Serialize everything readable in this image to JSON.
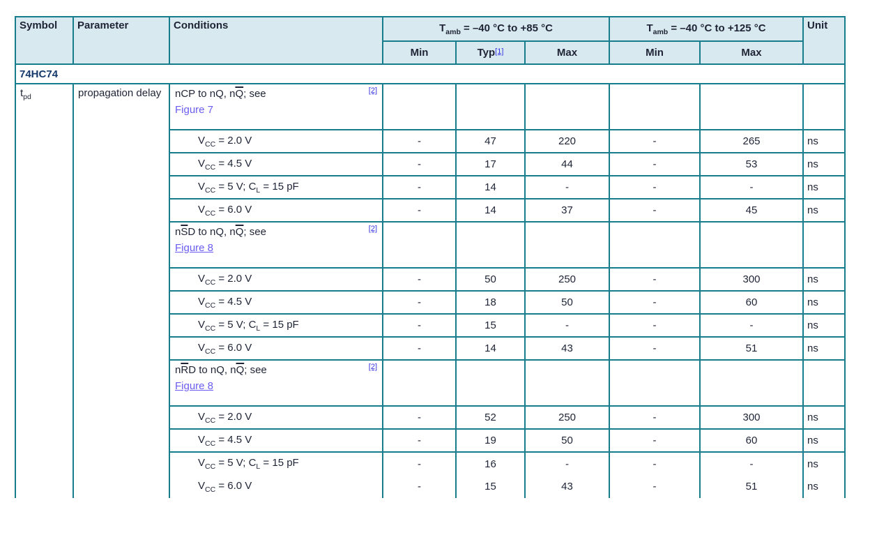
{
  "table": {
    "colors": {
      "border": "#177D8C",
      "header_bg": "#D9E9F0",
      "text": "#1E2435",
      "section_text": "#15396B",
      "figure_link": "#6A5CF0",
      "footnote_link": "#3434E4"
    },
    "header": {
      "symbol": "Symbol",
      "parameter": "Parameter",
      "conditions": "Conditions",
      "range85": "T~amb~ = –40 °C to +85 °C",
      "range125": "T~amb~ = –40 °C to +125 °C",
      "min85": "Min",
      "typ": "Typ",
      "typ_footnote": "[1]",
      "max85": "Max",
      "min125": "Min",
      "max125": "Max",
      "unit": "Unit"
    },
    "section_label": "74HC74",
    "symbol": "t~pd~",
    "parameter": "propagation delay",
    "groups": [
      {
        "condition": "nCP to nQ, n{Q}; see",
        "footnote": "[2]",
        "figure": "Figure 7",
        "figure_underlined": false,
        "rows": [
          {
            "condition": "V~CC~ = 2.0 V",
            "min85": "-",
            "typ85": "47",
            "max85": "220",
            "min125": "-",
            "max125": "265",
            "unit": "ns"
          },
          {
            "condition": "V~CC~ = 4.5 V",
            "min85": "-",
            "typ85": "17",
            "max85": "44",
            "min125": "-",
            "max125": "53",
            "unit": "ns"
          },
          {
            "condition": "V~CC~ = 5 V; C~L~ = 15 pF",
            "min85": "-",
            "typ85": "14",
            "max85": "-",
            "min125": "-",
            "max125": "-",
            "unit": "ns"
          },
          {
            "condition": "V~CC~ = 6.0 V",
            "min85": "-",
            "typ85": "14",
            "max85": "37",
            "min125": "-",
            "max125": "45",
            "unit": "ns"
          }
        ]
      },
      {
        "condition": "n{S}D to nQ, n{Q}; see",
        "footnote": "[2]",
        "figure": "Figure 8",
        "figure_underlined": true,
        "rows": [
          {
            "condition": "V~CC~ = 2.0 V",
            "min85": "-",
            "typ85": "50",
            "max85": "250",
            "min125": "-",
            "max125": "300",
            "unit": "ns"
          },
          {
            "condition": "V~CC~ = 4.5 V",
            "min85": "-",
            "typ85": "18",
            "max85": "50",
            "min125": "-",
            "max125": "60",
            "unit": "ns"
          },
          {
            "condition": "V~CC~ = 5 V; C~L~ = 15 pF",
            "min85": "-",
            "typ85": "15",
            "max85": "-",
            "min125": "-",
            "max125": "-",
            "unit": "ns"
          },
          {
            "condition": "V~CC~ = 6.0 V",
            "min85": "-",
            "typ85": "14",
            "max85": "43",
            "min125": "-",
            "max125": "51",
            "unit": "ns"
          }
        ]
      },
      {
        "condition": "n{R}D to nQ, n{Q}; see",
        "footnote": "[2]",
        "figure": "Figure 8",
        "figure_underlined": true,
        "rows": [
          {
            "condition": "V~CC~ = 2.0 V",
            "min85": "-",
            "typ85": "52",
            "max85": "250",
            "min125": "-",
            "max125": "300",
            "unit": "ns"
          },
          {
            "condition": "V~CC~ = 4.5 V",
            "min85": "-",
            "typ85": "19",
            "max85": "50",
            "min125": "-",
            "max125": "60",
            "unit": "ns"
          },
          {
            "condition": "V~CC~ = 5 V; C~L~ = 15 pF",
            "min85": "-",
            "typ85": "16",
            "max85": "-",
            "min125": "-",
            "max125": "-",
            "unit": "ns"
          },
          {
            "condition": "V~CC~ = 6.0 V",
            "min85": "-",
            "typ85": "15",
            "max85": "43",
            "min125": "-",
            "max125": "51",
            "unit": "ns"
          }
        ]
      }
    ]
  }
}
